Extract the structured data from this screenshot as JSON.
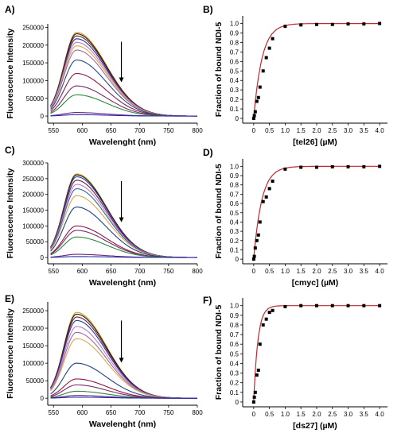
{
  "chart_data": [
    {
      "panel": "A)",
      "type": "line",
      "xlabel": "Wavelenght (nm)",
      "ylabel": "Fluorescence Intensity",
      "xlim": [
        540,
        800
      ],
      "ylim": [
        -20000,
        260000
      ],
      "xticks": [
        550,
        600,
        650,
        700,
        750,
        800
      ],
      "yticks": [
        0,
        50000,
        100000,
        150000,
        200000,
        250000
      ],
      "ytick_labels": [
        "0",
        "50000",
        "100000",
        "150000",
        "200000",
        "250000"
      ],
      "peak_x": 590,
      "arrow": "down",
      "series": [
        {
          "peak": 236000,
          "color": "#d4a017"
        },
        {
          "peak": 232000,
          "color": "#1a1a1a"
        },
        {
          "peak": 226000,
          "color": "#7a1a3a"
        },
        {
          "peak": 218000,
          "color": "#1f3f7a"
        },
        {
          "peak": 208000,
          "color": "#c07ad0"
        },
        {
          "peak": 198000,
          "color": "#d8a850"
        },
        {
          "peak": 186000,
          "color": "#a06aa0"
        },
        {
          "peak": 158000,
          "color": "#1f4f8a"
        },
        {
          "peak": 120000,
          "color": "#8a1a4a"
        },
        {
          "peak": 85000,
          "color": "#7a2a6a"
        },
        {
          "peak": 60000,
          "color": "#2a8a3a"
        },
        {
          "peak": 10000,
          "color": "#6a2a8a"
        },
        {
          "peak": 4000,
          "color": "#2a2aaa"
        }
      ]
    },
    {
      "panel": "B)",
      "type": "scatter",
      "xlabel": "[tel26] (µM)",
      "ylabel": "Fraction of bound NDI-5",
      "xlim": [
        -0.35,
        4.25
      ],
      "ylim": [
        -0.05,
        1.08
      ],
      "xticks": [
        0,
        0.5,
        1.0,
        1.5,
        2.0,
        2.5,
        3.0,
        3.5,
        4.0
      ],
      "xtick_labels": [
        "0",
        "0.5",
        "1.0",
        "1.5",
        "2.0",
        "2.5",
        "3.0",
        "3.5",
        "4.0"
      ],
      "yticks": [
        0,
        0.1,
        0.2,
        0.3,
        0.4,
        0.5,
        0.6,
        0.7,
        0.8,
        0.9,
        1.0
      ],
      "ytick_labels": [
        "0",
        "0.1",
        "0.2",
        "0.3",
        "0.4",
        "0.5",
        "0.6",
        "0.7",
        "0.8",
        "0.9",
        "1.0"
      ],
      "x": [
        0,
        0.02,
        0.05,
        0.1,
        0.15,
        0.2,
        0.3,
        0.4,
        0.5,
        0.6,
        1.0,
        1.5,
        2.0,
        2.5,
        3.0,
        3.5,
        4.0
      ],
      "y": [
        0.0,
        0.03,
        0.07,
        0.18,
        0.22,
        0.33,
        0.5,
        0.64,
        0.74,
        0.84,
        0.97,
        0.985,
        0.99,
        0.99,
        0.995,
        0.995,
        1.0
      ],
      "fit_color": "#c0282d",
      "fit_knee": 0.95
    },
    {
      "panel": "C)",
      "type": "line",
      "xlabel": "Wavelenght (nm)",
      "ylabel": "Fluorescence Intensity",
      "xlim": [
        540,
        800
      ],
      "ylim": [
        -20000,
        300000
      ],
      "xticks": [
        550,
        600,
        650,
        700,
        750,
        800
      ],
      "yticks": [
        0,
        50000,
        100000,
        150000,
        200000,
        250000,
        300000
      ],
      "ytick_labels": [
        "0",
        "50000",
        "100000",
        "150000",
        "200000",
        "250000",
        "300000"
      ],
      "peak_x": 590,
      "arrow": "down",
      "series": [
        {
          "peak": 265000,
          "color": "#d4a017"
        },
        {
          "peak": 262000,
          "color": "#1a1a1a"
        },
        {
          "peak": 256000,
          "color": "#1f3f9a"
        },
        {
          "peak": 245000,
          "color": "#7a1a3a"
        },
        {
          "peak": 232000,
          "color": "#c07ad0"
        },
        {
          "peak": 218000,
          "color": "#2a6aa0"
        },
        {
          "peak": 196000,
          "color": "#d8a850"
        },
        {
          "peak": 160000,
          "color": "#1f3f8a"
        },
        {
          "peak": 100000,
          "color": "#8a1a4a"
        },
        {
          "peak": 86000,
          "color": "#7a2a6a"
        },
        {
          "peak": 65000,
          "color": "#2a8a3a"
        },
        {
          "peak": 10000,
          "color": "#6a2a8a"
        },
        {
          "peak": 3000,
          "color": "#2a2aaa"
        }
      ]
    },
    {
      "panel": "D)",
      "type": "scatter",
      "xlabel": "[cmyc] (µM)",
      "ylabel": "Fraction of bound NDI-5",
      "xlim": [
        -0.35,
        4.25
      ],
      "ylim": [
        -0.05,
        1.08
      ],
      "xticks": [
        0,
        0.5,
        1.0,
        1.5,
        2.0,
        2.5,
        3.0,
        3.5,
        4.0
      ],
      "xtick_labels": [
        "0",
        "0.5",
        "1.0",
        "1.5",
        "2.0",
        "2.5",
        "3.0",
        "3.5",
        "4.0"
      ],
      "yticks": [
        0,
        0.1,
        0.2,
        0.3,
        0.4,
        0.5,
        0.6,
        0.7,
        0.8,
        0.9,
        1.0
      ],
      "ytick_labels": [
        "0",
        "0.1",
        "0.2",
        "0.3",
        "0.4",
        "0.5",
        "0.6",
        "0.7",
        "0.8",
        "0.9",
        "1.0"
      ],
      "x": [
        0,
        0.02,
        0.05,
        0.1,
        0.15,
        0.2,
        0.3,
        0.4,
        0.5,
        0.6,
        1.0,
        1.5,
        2.0,
        2.5,
        3.0,
        3.5,
        4.0
      ],
      "y": [
        0.0,
        0.03,
        0.12,
        0.2,
        0.26,
        0.4,
        0.62,
        0.67,
        0.76,
        0.84,
        0.97,
        0.99,
        0.99,
        0.995,
        0.995,
        0.995,
        1.0
      ],
      "fit_color": "#c0282d",
      "fit_knee": 0.92
    },
    {
      "panel": "E)",
      "type": "line",
      "xlabel": "Wavelenght (nm)",
      "ylabel": "Fluorescence Intensity",
      "xlim": [
        540,
        800
      ],
      "ylim": [
        -20000,
        275000
      ],
      "xticks": [
        550,
        600,
        650,
        700,
        750,
        800
      ],
      "yticks": [
        0,
        50000,
        100000,
        150000,
        200000,
        250000
      ],
      "ytick_labels": [
        "0",
        "50000",
        "100000",
        "150000",
        "200000",
        "250000"
      ],
      "peak_x": 590,
      "arrow": "down",
      "series": [
        {
          "peak": 245000,
          "color": "#d4a017"
        },
        {
          "peak": 240000,
          "color": "#1a1a1a"
        },
        {
          "peak": 232000,
          "color": "#7a1a3a"
        },
        {
          "peak": 222000,
          "color": "#1f3f9a"
        },
        {
          "peak": 205000,
          "color": "#c07ad0"
        },
        {
          "peak": 188000,
          "color": "#a06aa0"
        },
        {
          "peak": 170000,
          "color": "#d8a850"
        },
        {
          "peak": 100000,
          "color": "#1f3f8a"
        },
        {
          "peak": 55000,
          "color": "#8a1a4a"
        },
        {
          "peak": 38000,
          "color": "#7a2a6a"
        },
        {
          "peak": 20000,
          "color": "#2a8a3a"
        },
        {
          "peak": 8000,
          "color": "#6a2a8a"
        },
        {
          "peak": 3000,
          "color": "#2a2aaa"
        }
      ]
    },
    {
      "panel": "F)",
      "type": "scatter",
      "xlabel": "[ds27] (µM)",
      "ylabel": "Fraction of bound NDI-5",
      "xlim": [
        -0.35,
        4.25
      ],
      "ylim": [
        -0.05,
        1.08
      ],
      "xticks": [
        0,
        0.5,
        1.0,
        1.5,
        2.0,
        2.5,
        3.0,
        3.5,
        4.0
      ],
      "xtick_labels": [
        "0",
        "0.5",
        "1.0",
        "1.5",
        "2.0",
        "2.5",
        "3.0",
        "3.5",
        "4.0"
      ],
      "yticks": [
        0,
        0.1,
        0.2,
        0.3,
        0.4,
        0.5,
        0.6,
        0.7,
        0.8,
        0.9,
        1.0
      ],
      "ytick_labels": [
        "0",
        "0.1",
        "0.2",
        "0.3",
        "0.4",
        "0.5",
        "0.6",
        "0.7",
        "0.8",
        "0.9",
        "1.0"
      ],
      "x": [
        0,
        0.02,
        0.05,
        0.1,
        0.15,
        0.2,
        0.3,
        0.4,
        0.5,
        0.6,
        1.0,
        1.5,
        2.0,
        2.5,
        3.0,
        3.5,
        4.0
      ],
      "y": [
        0.0,
        0.05,
        0.1,
        0.28,
        0.33,
        0.6,
        0.8,
        0.86,
        0.93,
        0.95,
        0.99,
        1.0,
        1.0,
        1.0,
        1.0,
        1.0,
        1.0
      ],
      "fit_color": "#c0282d",
      "fit_knee": 0.48
    }
  ]
}
